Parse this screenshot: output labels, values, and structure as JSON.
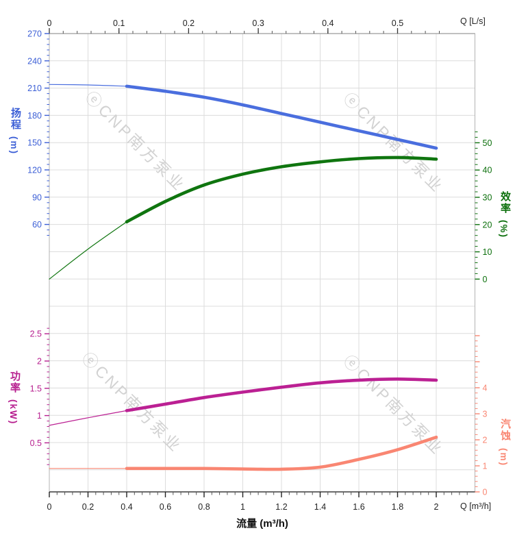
{
  "watermark": {
    "text": "ⓔCNP南方泵业",
    "color": "#d2d2d2"
  },
  "chart_data": {
    "type": "line",
    "title": "",
    "grid": true,
    "x_bottom": {
      "axis_label": "流量 (m³/h)",
      "unit_label": "Q [m³/h]",
      "ticks": [
        0,
        0.2,
        0.4,
        0.6,
        0.8,
        1,
        1.2,
        1.4,
        1.6,
        1.8,
        2
      ],
      "minor_step": 0.04,
      "range": [
        0,
        2.2
      ],
      "color": "#222222"
    },
    "x_top": {
      "unit_label": "Q [L/s]",
      "ticks": [
        0,
        0.1,
        0.2,
        0.3,
        0.4,
        0.5
      ],
      "minor_step": 0.02,
      "range": [
        0,
        0.611
      ],
      "color": "#222222"
    },
    "y_axes": {
      "head": {
        "title": "扬程",
        "unit": "(m)",
        "side": "left",
        "ticks": [
          60,
          90,
          120,
          150,
          180,
          210,
          240,
          270
        ],
        "minor_step": 6,
        "minor_range": [
          48,
          270
        ],
        "color": "#3c5fd6"
      },
      "eff": {
        "title": "效率",
        "unit": "(%)",
        "side": "right",
        "ticks": [
          0,
          10,
          20,
          30,
          40,
          50
        ],
        "minor_step": 2,
        "minor_range": [
          0,
          54
        ],
        "color": "#0b6f0b"
      },
      "power": {
        "title": "功率",
        "unit": "(kW)",
        "side": "left",
        "ticks": [
          0.5,
          1,
          1.5,
          2,
          2.5
        ],
        "minor_step": 0.1,
        "minor_range": [
          0.1,
          2.6
        ],
        "color": "#b71f8f"
      },
      "npsh": {
        "title": "汽蚀",
        "unit": "(m)",
        "side": "right",
        "ticks": [
          0,
          1,
          2,
          3,
          4
        ],
        "unlabeled_ticks": [
          5,
          6
        ],
        "minor_step": 0.2,
        "minor_range": [
          0,
          6
        ],
        "color": "#f98672"
      }
    },
    "series": [
      {
        "name": "head-curve",
        "axis": "head",
        "color": "#4a6ede",
        "solid_from": 0.4,
        "x": [
          0,
          0.2,
          0.4,
          0.6,
          0.8,
          1,
          1.2,
          1.4,
          1.6,
          1.8,
          2
        ],
        "y": [
          214,
          213.5,
          212,
          206.5,
          200,
          191.5,
          182,
          172.5,
          163,
          153.5,
          144
        ]
      },
      {
        "name": "efficiency-curve",
        "axis": "eff",
        "color": "#0f750f",
        "solid_from": 0.4,
        "x": [
          0,
          0.2,
          0.4,
          0.6,
          0.8,
          1,
          1.2,
          1.4,
          1.6,
          1.8,
          2
        ],
        "y": [
          0,
          11,
          21,
          28.5,
          34.5,
          38.5,
          41.2,
          43,
          44.2,
          44.6,
          44
        ]
      },
      {
        "name": "power-curve",
        "axis": "power",
        "color": "#bb2093",
        "solid_from": 0.4,
        "x": [
          0,
          0.2,
          0.4,
          0.6,
          0.8,
          1,
          1.2,
          1.4,
          1.6,
          1.8,
          2
        ],
        "y": [
          0.82,
          0.96,
          1.09,
          1.21,
          1.33,
          1.43,
          1.52,
          1.6,
          1.65,
          1.67,
          1.65
        ]
      },
      {
        "name": "npsh-curve",
        "axis": "npsh",
        "color": "#f98672",
        "solid_from": 0.4,
        "x": [
          0,
          0.2,
          0.4,
          0.6,
          0.8,
          1,
          1.2,
          1.4,
          1.6,
          1.8,
          2
        ],
        "y": [
          0.9,
          0.9,
          0.9,
          0.9,
          0.9,
          0.88,
          0.87,
          0.95,
          1.25,
          1.62,
          2.1
        ]
      }
    ]
  }
}
